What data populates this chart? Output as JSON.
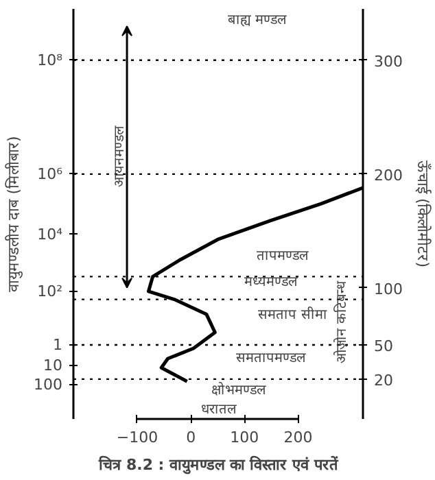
{
  "chart_data": {
    "type": "line",
    "title": "चित्र 8.2 : वायुमण्डल का विस्तार एवं परतें",
    "ylabel": "ऊँचाई (किलोमीटर)",
    "y2label": "वायुमण्डलीय दाब (मिलीबार)",
    "x": [
      -7,
      -31,
      -55,
      -43,
      5,
      45,
      29,
      -31,
      -79,
      -71,
      -19,
      52,
      148,
      243,
      321
    ],
    "series": [
      {
        "color": "#000000",
        "values": [
          18,
          24,
          30,
          38,
          47,
          61,
          77,
          90,
          97,
          110,
          125,
          143,
          159,
          174,
          188
        ]
      }
    ],
    "xlim": [
      -219,
      321
    ],
    "xticks": [
      -100,
      0,
      100,
      200
    ],
    "ylim": [
      -15,
      345
    ],
    "yticks": [
      20,
      50,
      100,
      200,
      300
    ],
    "ref_lines": [
      {
        "axis": "y",
        "value": 300,
        "line_style": "dotted"
      },
      {
        "axis": "y",
        "value": 200,
        "line_style": "dotted"
      },
      {
        "axis": "y",
        "value": 110,
        "line_style": "dotted"
      },
      {
        "axis": "y",
        "value": 90,
        "line_style": "dotted"
      },
      {
        "axis": "y",
        "value": 50,
        "line_style": "dotted"
      },
      {
        "axis": "y",
        "value": 20,
        "line_style": "dotted"
      }
    ],
    "annotations": [
      "बाह्य मण्डल",
      "आयनमण्डल",
      "तापमण्डल",
      "मध्यमण्डल",
      "समताप सीमा",
      "समतापमण्डल",
      "ओज़ोन कटिबन्ध",
      "क्षोभमण्डल",
      "धरातल",
      "10⁸",
      "10⁶",
      "10⁴",
      "10²",
      "1",
      "10",
      "100"
    ],
    "grid": false
  }
}
